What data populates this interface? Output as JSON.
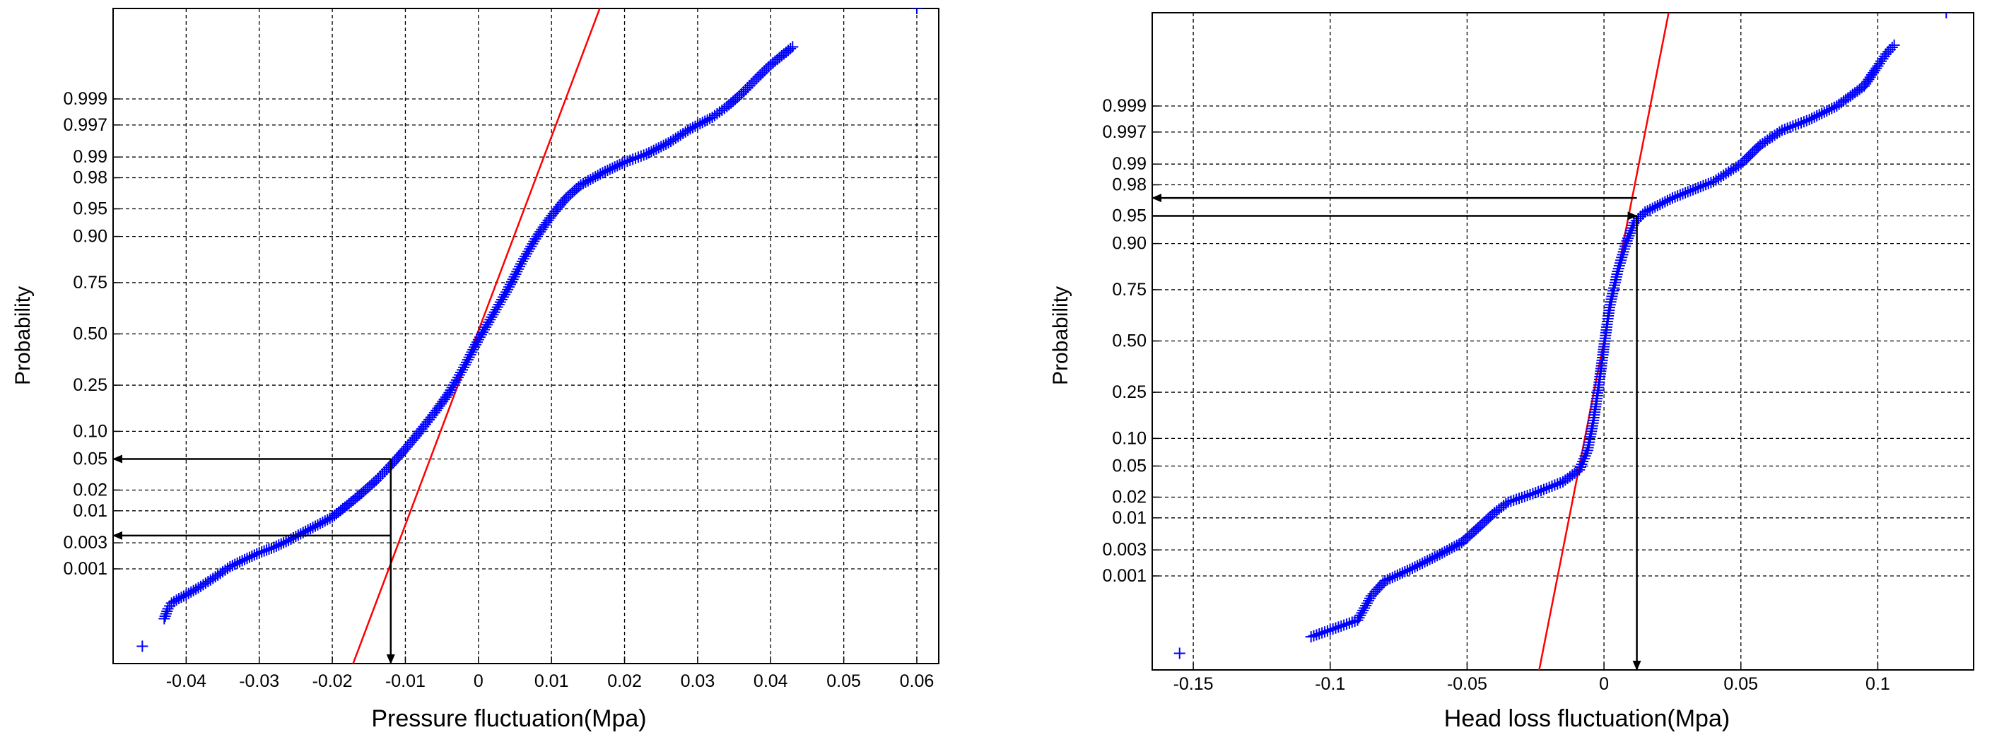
{
  "chart_data": [
    {
      "type": "scatter",
      "plot_kind": "normal probability plot",
      "xlabel": "Pressure fluctuation(Mpa)",
      "ylabel": "Probability",
      "xlim": [
        -0.05,
        0.063
      ],
      "x_ticks": [
        "-0.04",
        "-0.03",
        "-0.02",
        "-0.01",
        "0",
        "0.01",
        "0.02",
        "0.03",
        "0.04",
        "0.05",
        "0.06"
      ],
      "y_ticks": [
        "0.001",
        "0.003",
        "0.01",
        "0.02",
        "0.05",
        "0.10",
        "0.25",
        "0.50",
        "0.75",
        "0.90",
        "0.95",
        "0.98",
        "0.99",
        "0.997",
        "0.999"
      ],
      "y_scale": "normal probability",
      "grid": true,
      "series": [
        {
          "color": "#0000ff",
          "marker": "+",
          "points": [
            {
              "x": -0.046,
              "p": 2e-05
            },
            {
              "x": -0.043,
              "p": 9e-05
            },
            {
              "x": -0.0425,
              "p": 0.00015
            },
            {
              "x": -0.042,
              "p": 0.0002
            },
            {
              "x": -0.041,
              "p": 0.00025
            },
            {
              "x": -0.04,
              "p": 0.0003
            },
            {
              "x": -0.038,
              "p": 0.00045
            },
            {
              "x": -0.036,
              "p": 0.0007
            },
            {
              "x": -0.034,
              "p": 0.0011
            },
            {
              "x": -0.032,
              "p": 0.0015
            },
            {
              "x": -0.03,
              "p": 0.002
            },
            {
              "x": -0.028,
              "p": 0.0025
            },
            {
              "x": -0.026,
              "p": 0.0033
            },
            {
              "x": -0.024,
              "p": 0.0045
            },
            {
              "x": -0.022,
              "p": 0.006
            },
            {
              "x": -0.02,
              "p": 0.008
            },
            {
              "x": -0.018,
              "p": 0.012
            },
            {
              "x": -0.016,
              "p": 0.018
            },
            {
              "x": -0.014,
              "p": 0.027
            },
            {
              "x": -0.012,
              "p": 0.042
            },
            {
              "x": -0.01,
              "p": 0.065
            },
            {
              "x": -0.008,
              "p": 0.1
            },
            {
              "x": -0.006,
              "p": 0.15
            },
            {
              "x": -0.004,
              "p": 0.22
            },
            {
              "x": -0.002,
              "p": 0.33
            },
            {
              "x": 0.0,
              "p": 0.47
            },
            {
              "x": 0.002,
              "p": 0.6
            },
            {
              "x": 0.004,
              "p": 0.72
            },
            {
              "x": 0.006,
              "p": 0.83
            },
            {
              "x": 0.008,
              "p": 0.9
            },
            {
              "x": 0.01,
              "p": 0.94
            },
            {
              "x": 0.012,
              "p": 0.963
            },
            {
              "x": 0.014,
              "p": 0.975
            },
            {
              "x": 0.017,
              "p": 0.983
            },
            {
              "x": 0.02,
              "p": 0.988
            },
            {
              "x": 0.023,
              "p": 0.991
            },
            {
              "x": 0.026,
              "p": 0.994
            },
            {
              "x": 0.029,
              "p": 0.9965
            },
            {
              "x": 0.032,
              "p": 0.9978
            },
            {
              "x": 0.034,
              "p": 0.9986
            },
            {
              "x": 0.036,
              "p": 0.9992
            },
            {
              "x": 0.038,
              "p": 0.9996
            },
            {
              "x": 0.04,
              "p": 0.9998
            },
            {
              "x": 0.043,
              "p": 0.99992
            },
            {
              "x": 0.06,
              "p": 0.999995
            }
          ]
        },
        {
          "color": "#ff0000",
          "style": "fit line",
          "points": [
            {
              "x": -0.0195,
              "p": 4e-07
            },
            {
              "x": 0.019,
              "p": 0.9999995
            }
          ]
        }
      ],
      "annotations": [
        {
          "type": "arrow",
          "from": {
            "x": -0.012,
            "p": 0.05
          },
          "to": {
            "x": -0.0505,
            "p": 0.05
          },
          "direction": "right"
        },
        {
          "type": "arrow",
          "from": {
            "x": -0.012,
            "p": 0.004
          },
          "to": {
            "x": -0.0505,
            "p": 0.004
          },
          "direction": "left"
        },
        {
          "type": "arrow",
          "from": {
            "x": -0.012,
            "p": 0.05
          },
          "to": {
            "x": -0.012,
            "p": 5e-06
          },
          "direction": "down"
        }
      ]
    },
    {
      "type": "scatter",
      "plot_kind": "normal probability plot",
      "xlabel": "Head loss fluctuation(Mpa)",
      "ylabel": "Probability",
      "xlim": [
        -0.165,
        0.135
      ],
      "x_ticks": [
        "-0.15",
        "-0.1",
        "-0.05",
        "0",
        "0.05",
        "0.1"
      ],
      "y_ticks": [
        "0.001",
        "0.003",
        "0.01",
        "0.02",
        "0.05",
        "0.10",
        "0.25",
        "0.50",
        "0.75",
        "0.90",
        "0.95",
        "0.98",
        "0.99",
        "0.997",
        "0.999"
      ],
      "y_scale": "normal probability",
      "grid": true,
      "series": [
        {
          "color": "#0000ff",
          "marker": "+",
          "points": [
            {
              "x": -0.155,
              "p": 2e-05
            },
            {
              "x": -0.107,
              "p": 5e-05
            },
            {
              "x": -0.09,
              "p": 0.00012
            },
            {
              "x": -0.085,
              "p": 0.0004
            },
            {
              "x": -0.08,
              "p": 0.0008
            },
            {
              "x": -0.07,
              "p": 0.0014
            },
            {
              "x": -0.06,
              "p": 0.0025
            },
            {
              "x": -0.052,
              "p": 0.004
            },
            {
              "x": -0.046,
              "p": 0.007
            },
            {
              "x": -0.04,
              "p": 0.012
            },
            {
              "x": -0.035,
              "p": 0.017
            },
            {
              "x": -0.025,
              "p": 0.023
            },
            {
              "x": -0.015,
              "p": 0.032
            },
            {
              "x": -0.009,
              "p": 0.045
            },
            {
              "x": -0.006,
              "p": 0.075
            },
            {
              "x": -0.004,
              "p": 0.14
            },
            {
              "x": -0.002,
              "p": 0.27
            },
            {
              "x": 0.0,
              "p": 0.47
            },
            {
              "x": 0.002,
              "p": 0.67
            },
            {
              "x": 0.005,
              "p": 0.82
            },
            {
              "x": 0.008,
              "p": 0.9
            },
            {
              "x": 0.011,
              "p": 0.94
            },
            {
              "x": 0.015,
              "p": 0.955
            },
            {
              "x": 0.025,
              "p": 0.97
            },
            {
              "x": 0.04,
              "p": 0.982
            },
            {
              "x": 0.05,
              "p": 0.99
            },
            {
              "x": 0.057,
              "p": 0.995
            },
            {
              "x": 0.065,
              "p": 0.9972
            },
            {
              "x": 0.075,
              "p": 0.9982
            },
            {
              "x": 0.085,
              "p": 0.999
            },
            {
              "x": 0.095,
              "p": 0.9996
            },
            {
              "x": 0.1,
              "p": 0.99985
            },
            {
              "x": 0.103,
              "p": 0.99992
            },
            {
              "x": 0.106,
              "p": 0.99995
            },
            {
              "x": 0.125,
              "p": 0.999995
            }
          ]
        },
        {
          "color": "#ff0000",
          "style": "fit line",
          "points": [
            {
              "x": -0.026,
              "p": 1e-06
            },
            {
              "x": 0.026,
              "p": 0.999999
            }
          ]
        }
      ],
      "annotations": [
        {
          "type": "arrow",
          "from": {
            "x": 0.012,
            "p": 0.97
          },
          "to": {
            "x": -0.165,
            "p": 0.97
          },
          "direction": "left"
        },
        {
          "type": "arrow",
          "from": {
            "x": -0.165,
            "p": 0.95
          },
          "to": {
            "x": 0.012,
            "p": 0.95
          },
          "direction": "right"
        },
        {
          "type": "arrow",
          "from": {
            "x": 0.012,
            "p": 0.95
          },
          "to": {
            "x": 0.012,
            "p": 2e-06
          },
          "direction": "down"
        }
      ]
    }
  ]
}
